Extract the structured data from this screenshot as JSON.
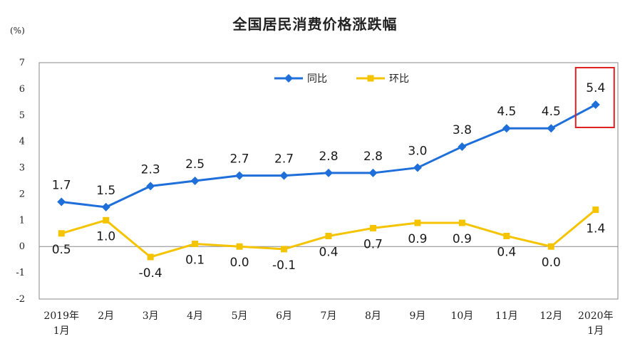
{
  "chart_data": {
    "type": "line",
    "title": "全国居民消费价格涨跌幅",
    "unit": "(%)",
    "categories": [
      [
        "2019年",
        "1月"
      ],
      [
        "2月"
      ],
      [
        "3月"
      ],
      [
        "4月"
      ],
      [
        "5月"
      ],
      [
        "6月"
      ],
      [
        "7月"
      ],
      [
        "8月"
      ],
      [
        "9月"
      ],
      [
        "10月"
      ],
      [
        "11月"
      ],
      [
        "12月"
      ],
      [
        "2020年",
        "1月"
      ]
    ],
    "ylim": [
      -2,
      7
    ],
    "yticks": [
      -2,
      -1,
      0,
      1,
      2,
      3,
      4,
      5,
      6,
      7
    ],
    "legend_position": "top-center",
    "series": [
      {
        "name": "同比",
        "color": "#1e6fd9",
        "marker": "diamond",
        "values": [
          1.7,
          1.5,
          2.3,
          2.5,
          2.7,
          2.7,
          2.8,
          2.8,
          3.0,
          3.8,
          4.5,
          4.5,
          5.4
        ],
        "labels": [
          "1.7",
          "1.5",
          "2.3",
          "2.5",
          "2.7",
          "2.7",
          "2.8",
          "2.8",
          "3.0",
          "3.8",
          "4.5",
          "4.5",
          "5.4"
        ]
      },
      {
        "name": "环比",
        "color": "#f5c400",
        "marker": "square",
        "values": [
          0.5,
          1.0,
          -0.4,
          0.1,
          0.0,
          -0.1,
          0.4,
          0.7,
          0.9,
          0.9,
          0.4,
          0.0,
          1.4
        ],
        "labels": [
          "0.5",
          "1.0",
          "-0.4",
          "0.1",
          "0.0",
          "-0.1",
          "0.4",
          "0.7",
          "0.9",
          "0.9",
          "0.4",
          "0.0",
          "1.4"
        ]
      }
    ],
    "highlight": {
      "series": 0,
      "index": 12,
      "color": "#e02020"
    },
    "grid": false
  }
}
